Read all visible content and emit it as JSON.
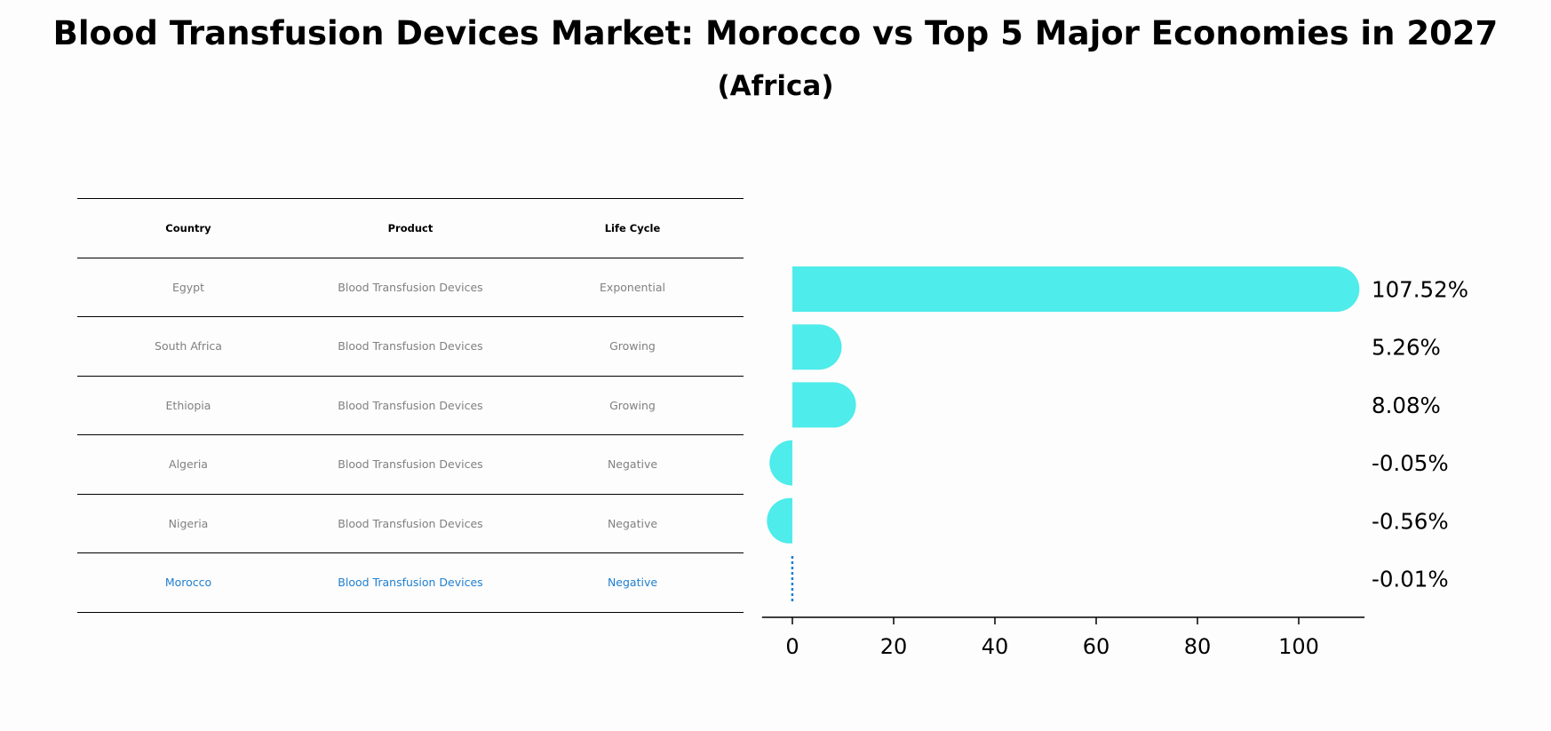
{
  "title": "Blood Transfusion Devices Market: Morocco vs Top 5 Major Economies in 2027",
  "subtitle": "(Africa)",
  "table": {
    "headers": [
      "Country",
      "Product",
      "Life Cycle"
    ],
    "rows": [
      {
        "country": "Egypt",
        "product": "Blood Transfusion Devices",
        "life_cycle": "Exponential",
        "highlight": false
      },
      {
        "country": "South Africa",
        "product": "Blood Transfusion Devices",
        "life_cycle": "Growing",
        "highlight": false
      },
      {
        "country": "Ethiopia",
        "product": "Blood Transfusion Devices",
        "life_cycle": "Growing",
        "highlight": false
      },
      {
        "country": "Algeria",
        "product": "Blood Transfusion Devices",
        "life_cycle": "Negative",
        "highlight": false
      },
      {
        "country": "Nigeria",
        "product": "Blood Transfusion Devices",
        "life_cycle": "Negative",
        "highlight": false
      },
      {
        "country": "Morocco",
        "product": "Blood Transfusion Devices",
        "life_cycle": "Negative",
        "highlight": true
      }
    ]
  },
  "colors": {
    "bar": "#4eecea",
    "highlight": "#1f7fd0",
    "muted_text": "#808080",
    "background": "#fdfdfd"
  },
  "chart_data": {
    "type": "bar",
    "orientation": "horizontal",
    "categories": [
      "Egypt",
      "South Africa",
      "Ethiopia",
      "Algeria",
      "Nigeria",
      "Morocco"
    ],
    "values": [
      107.52,
      5.26,
      8.08,
      -0.05,
      -0.56,
      -0.01
    ],
    "value_labels": [
      "107.52%",
      "5.26%",
      "8.08%",
      "-0.05%",
      "-0.56%",
      "-0.01%"
    ],
    "xticks": [
      0,
      20,
      40,
      60,
      80,
      100
    ],
    "xlim": [
      -6,
      113
    ],
    "highlight_index": 5,
    "title": "",
    "xlabel": "",
    "ylabel": "",
    "grid": false
  }
}
